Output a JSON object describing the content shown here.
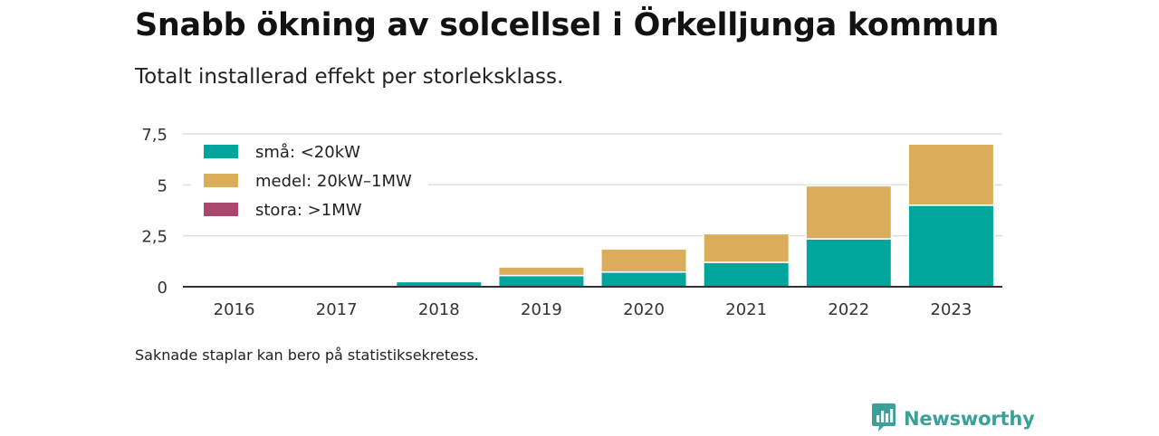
{
  "title": "Snabb ökning av solcellsel i Örkelljunga kommun",
  "subtitle": "Totalt installerad effekt per storleksklass.",
  "footnote": "Saknade staplar kan bero på statistiksekretess.",
  "brand": {
    "name": "Newsworthy",
    "logo_icon": "bar-chart-speech-bubble-icon",
    "color": "#3aa199"
  },
  "chart_data": {
    "type": "bar",
    "stacked": true,
    "categories": [
      "2016",
      "2017",
      "2018",
      "2019",
      "2020",
      "2021",
      "2022",
      "2023"
    ],
    "series": [
      {
        "name": "små: <20kW",
        "color": "#00a59b",
        "values": [
          0,
          0,
          0.25,
          0.55,
          0.72,
          1.2,
          2.35,
          4.0
        ]
      },
      {
        "name": "medel: 20kW–1MW",
        "color": "#dbad5b",
        "values": [
          0,
          0,
          0,
          0.42,
          1.13,
          1.4,
          2.6,
          3.0
        ]
      },
      {
        "name": "stora: >1MW",
        "color": "#a9476d",
        "values": [
          0,
          0,
          0,
          0,
          0,
          0,
          0,
          0
        ]
      }
    ],
    "ylim": [
      0,
      7.5
    ],
    "yticks": [
      0,
      2.5,
      5,
      7.5
    ],
    "ytick_labels": [
      "0",
      "2,5",
      "5",
      "7,5"
    ],
    "grid": true,
    "legend": "top-left"
  }
}
